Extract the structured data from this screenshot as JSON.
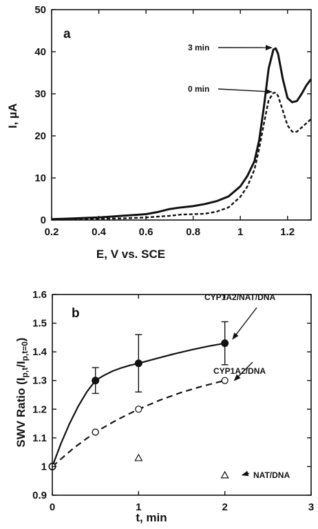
{
  "chart_data": [
    {
      "type": "line",
      "panel_label": "a",
      "xlabel": "E, V vs. SCE",
      "ylabel": "I, µA",
      "xlim": [
        0.2,
        1.3
      ],
      "ylim": [
        0,
        50
      ],
      "xticks": [
        0.2,
        0.4,
        0.6,
        0.8,
        1,
        1.2
      ],
      "xtick_labels": [
        "0.2",
        "0.4",
        "0.6",
        "0.8",
        "1",
        "1.2"
      ],
      "yticks": [
        0,
        10,
        20,
        30,
        40,
        50
      ],
      "ytick_labels": [
        "0",
        "10",
        "20",
        "30",
        "40",
        "50"
      ],
      "grid": false,
      "annotations": [
        {
          "text": "3 min",
          "target": [
            1.145,
            40.8
          ]
        },
        {
          "text": "0 min",
          "target": [
            1.145,
            30.3
          ]
        }
      ],
      "series": [
        {
          "name": "3 min",
          "style": "solid",
          "x": [
            0.2,
            0.25,
            0.3,
            0.35,
            0.4,
            0.45,
            0.5,
            0.55,
            0.6,
            0.65,
            0.7,
            0.75,
            0.8,
            0.85,
            0.9,
            0.95,
            1.0,
            1.03,
            1.06,
            1.08,
            1.1,
            1.12,
            1.14,
            1.15,
            1.16,
            1.18,
            1.2,
            1.22,
            1.24,
            1.26,
            1.28,
            1.3
          ],
          "y": [
            0.2,
            0.3,
            0.4,
            0.5,
            0.6,
            0.8,
            1.0,
            1.2,
            1.4,
            1.9,
            2.6,
            3.0,
            3.3,
            3.8,
            4.5,
            5.6,
            8.0,
            10.5,
            14.0,
            19.0,
            27.0,
            36.0,
            40.5,
            40.8,
            39.5,
            33.5,
            29.0,
            28.0,
            28.3,
            30.0,
            32.0,
            33.5
          ]
        },
        {
          "name": "0 min",
          "style": "dashed",
          "x": [
            0.2,
            0.3,
            0.4,
            0.5,
            0.6,
            0.65,
            0.7,
            0.75,
            0.8,
            0.85,
            0.9,
            0.95,
            1.0,
            1.03,
            1.06,
            1.08,
            1.1,
            1.12,
            1.14,
            1.15,
            1.16,
            1.18,
            1.2,
            1.22,
            1.24,
            1.26,
            1.28,
            1.3
          ],
          "y": [
            0.1,
            0.2,
            0.3,
            0.4,
            0.6,
            0.8,
            1.0,
            1.3,
            1.4,
            1.5,
            2.0,
            3.0,
            5.5,
            8.0,
            12.0,
            17.0,
            23.0,
            28.5,
            30.2,
            30.3,
            29.5,
            26.0,
            22.5,
            21.0,
            21.0,
            22.0,
            23.0,
            24.0
          ]
        }
      ]
    },
    {
      "type": "scatter",
      "panel_label": "b",
      "xlabel": "t, min",
      "ylabel_parts": [
        "SWV Ratio (I",
        "p,t",
        "/I",
        "p,t=0",
        ")"
      ],
      "xlim": [
        0,
        3
      ],
      "ylim": [
        0.9,
        1.6
      ],
      "xticks": [
        0,
        1,
        2,
        3
      ],
      "xtick_labels": [
        "0",
        "1",
        "2",
        "3"
      ],
      "yticks": [
        0.9,
        1.0,
        1.1,
        1.2,
        1.3,
        1.4,
        1.5,
        1.6
      ],
      "ytick_labels": [
        "0.9",
        "1",
        "1.1",
        "1.2",
        "1.3",
        "1.4",
        "1.5",
        "1.6"
      ],
      "grid": false,
      "series": [
        {
          "name": "CYP1A2/NAT/DNA",
          "marker": "filled-circle",
          "fit": "solid",
          "x": [
            0,
            0.5,
            1,
            2
          ],
          "y": [
            1.0,
            1.3,
            1.36,
            1.43
          ],
          "error": [
            0,
            0.045,
            0.1,
            0.075
          ],
          "fit_x": [
            0,
            0.1,
            0.2,
            0.3,
            0.4,
            0.5,
            0.6,
            0.7,
            0.8,
            0.9,
            1.0,
            1.2,
            1.4,
            1.6,
            1.8,
            2.0
          ],
          "fit_y": [
            1.0,
            1.08,
            1.15,
            1.21,
            1.26,
            1.3,
            1.318,
            1.333,
            1.344,
            1.353,
            1.36,
            1.376,
            1.392,
            1.406,
            1.419,
            1.43
          ]
        },
        {
          "name": "CYP1A2/DNA",
          "marker": "open-circle",
          "fit": "dashed",
          "x": [
            0,
            0.5,
            1,
            2
          ],
          "y": [
            1.0,
            1.12,
            1.2,
            1.3
          ],
          "fit_x": [
            0,
            0.25,
            0.5,
            0.75,
            1.0,
            1.25,
            1.5,
            1.75,
            2.0
          ],
          "fit_y": [
            1.0,
            1.065,
            1.12,
            1.163,
            1.2,
            1.232,
            1.259,
            1.281,
            1.3
          ]
        },
        {
          "name": "NAT/DNA",
          "marker": "open-triangle",
          "x": [
            1,
            2
          ],
          "y": [
            1.03,
            0.97
          ]
        }
      ],
      "annotations": [
        {
          "text": "CYP1A2/NAT/DNA",
          "target": [
            2.09,
            1.43
          ]
        },
        {
          "text": "CYP1A2/DNA",
          "target": [
            2.11,
            1.3
          ]
        },
        {
          "text": "NAT/DNA",
          "target": [
            2.2,
            0.97
          ]
        }
      ]
    }
  ]
}
